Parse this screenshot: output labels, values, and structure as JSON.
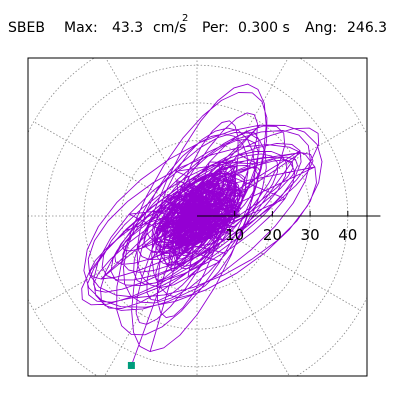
{
  "header": {
    "station": "SBEB",
    "max_label": "Max:",
    "max_value": "43.3",
    "max_unit": "cm/s",
    "max_unit_exp": "2",
    "per_label": "Per:",
    "per_value": "0.300 s",
    "ang_label": "Ang:",
    "ang_value": "246.3"
  },
  "chart_data": {
    "type": "polar-orbit",
    "title": "",
    "radial_ticks": [
      "10",
      "20",
      "30",
      "40"
    ],
    "radial_max": 46,
    "rings": [
      10,
      20,
      30,
      40,
      50
    ],
    "spokes_deg": [
      0,
      30,
      60,
      90,
      120,
      150,
      180,
      210,
      240,
      270,
      300,
      330
    ],
    "grid": true,
    "trace_color": "#9400d3",
    "marker_color": "#009c7c",
    "peak": {
      "magnitude": 43.3,
      "angle_deg": 246.3
    }
  }
}
